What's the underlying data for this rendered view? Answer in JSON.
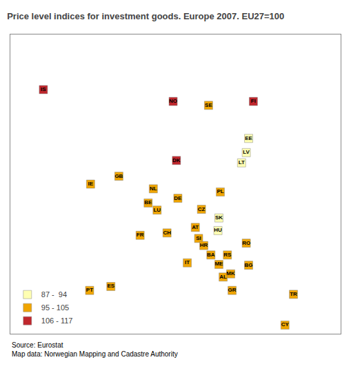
{
  "chart_data": {
    "type": "map",
    "title": "Price level indices for investment goods. Europe 2007. EU27=100",
    "annotations": [
      "Source: Eurostat\nMap data: Norwegian Mapping and Cadastre Authority"
    ],
    "series": [
      {
        "name": "87 -  94",
        "color": "#FFFFB2",
        "countries": [
          "EE",
          "LV",
          "LT",
          "SK",
          "HU"
        ],
        "x": [
          25.5,
          25.0,
          24.0,
          19.2,
          19.0
        ],
        "y": [
          58.8,
          57.0,
          55.7,
          48.7,
          47.1
        ]
      },
      {
        "name": "95 - 105",
        "color": "#F0A500",
        "countries": [
          "SE",
          "GB",
          "IE",
          "NL",
          "BE",
          "LU",
          "DE",
          "PL",
          "CZ",
          "AT",
          "CH",
          "FR",
          "SI",
          "HR",
          "BA",
          "RS",
          "ME",
          "MK",
          "AL",
          "RO",
          "BG",
          "GR",
          "IT",
          "ES",
          "PT",
          "TR",
          "CY"
        ],
        "x": [
          17.0,
          -2.0,
          -8.0,
          5.3,
          4.2,
          6.1,
          10.5,
          19.5,
          15.5,
          14.2,
          8.2,
          2.5,
          14.9,
          16.0,
          17.5,
          21.0,
          19.2,
          21.7,
          20.1,
          25.0,
          25.5,
          22.0,
          12.5,
          -3.7,
          -8.2,
          35.0,
          33.2
        ],
        "y": [
          63.0,
          54.0,
          53.0,
          52.4,
          50.6,
          49.7,
          51.2,
          52.0,
          49.8,
          47.5,
          46.8,
          46.5,
          46.1,
          45.2,
          44.0,
          44.0,
          42.8,
          41.6,
          41.2,
          45.5,
          42.7,
          39.5,
          43.0,
          40.0,
          39.5,
          39.0,
          35.1
        ]
      },
      {
        "name": "106 - 117",
        "color": "#C0272D",
        "countries": [
          "IS",
          "NO",
          "FI",
          "DK"
        ],
        "x": [
          -18,
          9.5,
          26.5,
          10.2
        ],
        "y": [
          65.0,
          63.5,
          63.5,
          56.0
        ]
      }
    ],
    "xlim": [
      -25,
      45
    ],
    "ylim": [
      34,
      72
    ],
    "tick_labels": false,
    "grid": false,
    "legend": "lower left"
  }
}
